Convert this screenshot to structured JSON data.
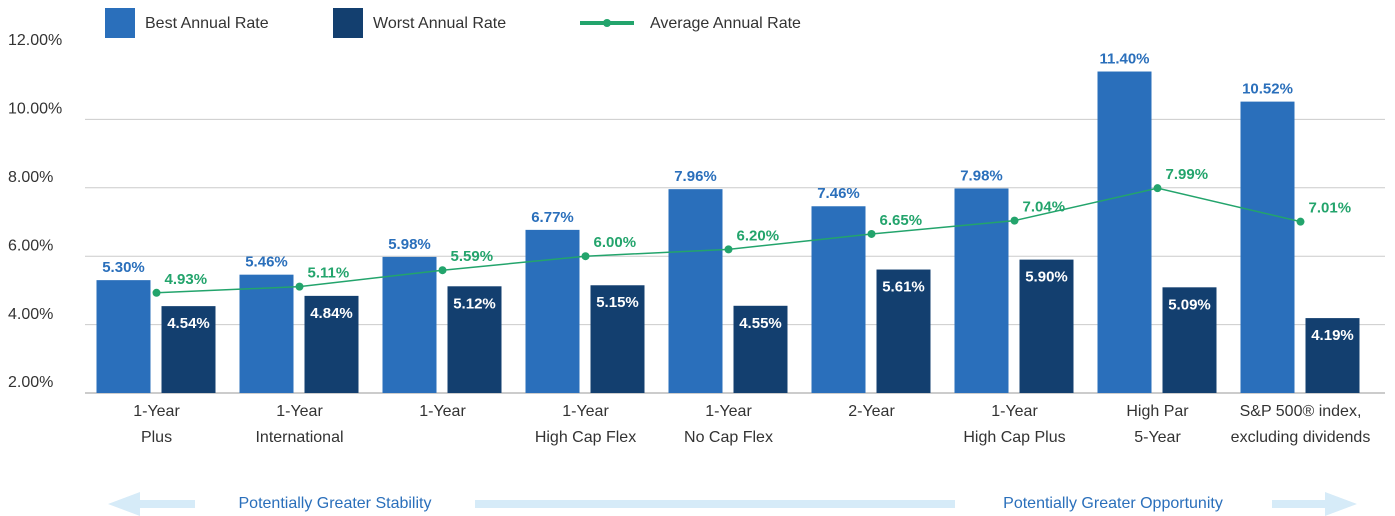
{
  "chart_data": {
    "type": "bar",
    "categories": [
      [
        "1-Year",
        "Plus"
      ],
      [
        "1-Year",
        "International"
      ],
      [
        "1-Year"
      ],
      [
        "1-Year",
        "High Cap Flex"
      ],
      [
        "1-Year",
        "No Cap Flex"
      ],
      [
        "2-Year"
      ],
      [
        "1-Year",
        "High Cap Plus"
      ],
      [
        "High Par",
        "5-Year"
      ],
      [
        "S&P 500® index,",
        "excluding dividends"
      ]
    ],
    "series": [
      {
        "name": "Best Annual Rate",
        "color": "#2a6fbb",
        "values": [
          5.3,
          5.46,
          5.98,
          6.77,
          7.96,
          7.46,
          7.98,
          11.4,
          10.52
        ],
        "value_labels": [
          "5.30%",
          "5.46%",
          "5.98%",
          "6.77%",
          "7.96%",
          "7.46%",
          "7.98%",
          "11.40%",
          "10.52%"
        ]
      },
      {
        "name": "Worst Annual Rate",
        "color": "#133f6f",
        "values": [
          4.54,
          4.84,
          5.12,
          5.15,
          4.55,
          5.61,
          5.9,
          5.09,
          4.19
        ],
        "value_labels": [
          "4.54%",
          "4.84%",
          "5.12%",
          "5.15%",
          "4.55%",
          "5.61%",
          "5.90%",
          "5.09%",
          "4.19%"
        ]
      },
      {
        "name": "Average Annual Rate",
        "type": "line",
        "color": "#23a46c",
        "values": [
          4.93,
          5.11,
          5.59,
          6.0,
          6.2,
          6.65,
          7.04,
          7.99,
          7.01
        ],
        "value_labels": [
          "4.93%",
          "5.11%",
          "5.59%",
          "6.00%",
          "6.20%",
          "6.65%",
          "7.04%",
          "7.99%",
          "7.01%"
        ]
      }
    ],
    "ylim": [
      2,
      12
    ],
    "yticks": [
      {
        "value": 2,
        "label": "2.00%"
      },
      {
        "value": 4,
        "label": "4.00%"
      },
      {
        "value": 6,
        "label": "6.00%"
      },
      {
        "value": 8,
        "label": "8.00%"
      },
      {
        "value": 10,
        "label": "10.00%"
      },
      {
        "value": 12,
        "label": "12.00%"
      }
    ],
    "grid": true,
    "annotations": [
      "Potentially Greater Stability",
      "Potentially Greater Opportunity"
    ]
  }
}
